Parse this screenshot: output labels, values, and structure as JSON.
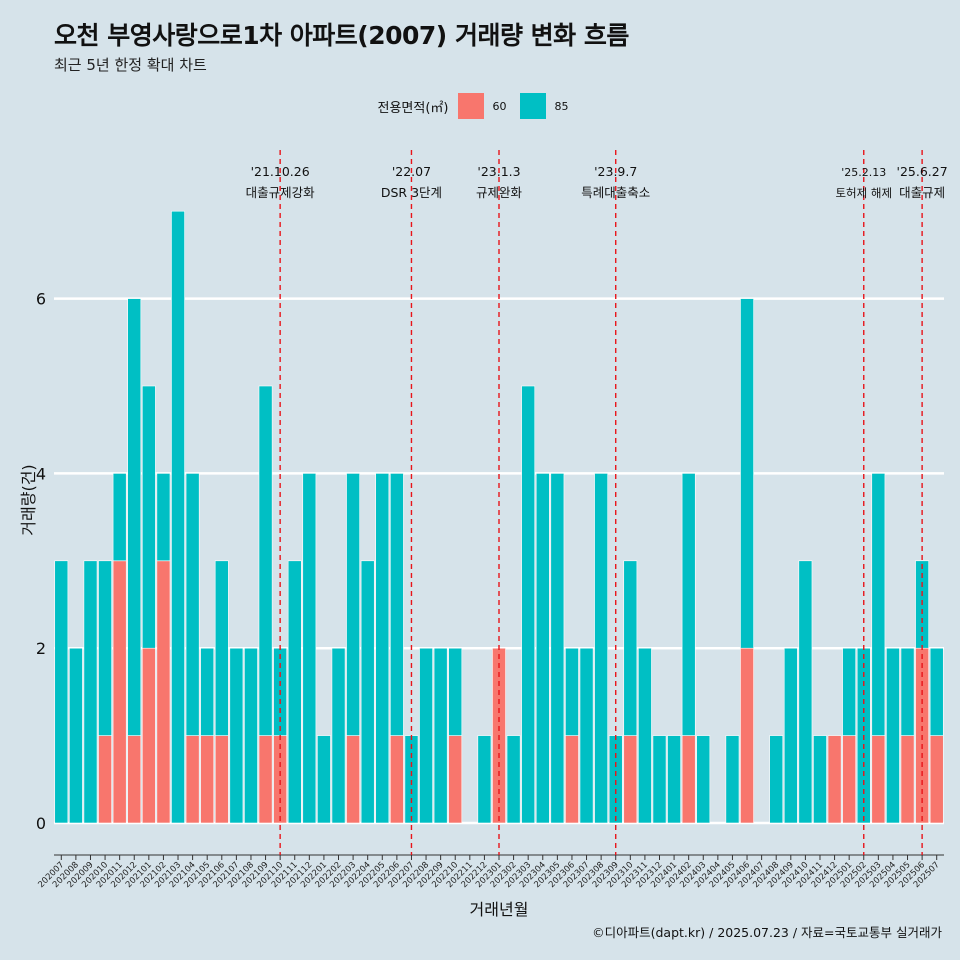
{
  "title": "오천 부영사랑으로1차 아파트(2007) 거래량 변화 흐름",
  "subtitle": "최근 5년 한정 확대 차트",
  "caption": "©디아파트(dapt.kr) / 2025.07.23 / 자료=국토교통부 실거래가",
  "legend": {
    "title": "전용면적(㎡)",
    "items": [
      {
        "label": "60",
        "color": "#f8766d"
      },
      {
        "label": "85",
        "color": "#00bfc4"
      }
    ]
  },
  "chart_data": {
    "type": "bar",
    "xlabel": "거래년월",
    "ylabel": "거래량(건)",
    "ylim": [
      -0.3,
      7.5
    ],
    "yticks": [
      0,
      2,
      4,
      6
    ],
    "grid": true,
    "legend_position": "top",
    "categories": [
      "202007",
      "202008",
      "202009",
      "202010",
      "202011",
      "202012",
      "202101",
      "202102",
      "202103",
      "202104",
      "202105",
      "202106",
      "202107",
      "202108",
      "202109",
      "202110",
      "202111",
      "202112",
      "202201",
      "202202",
      "202203",
      "202204",
      "202205",
      "202206",
      "202207",
      "202208",
      "202209",
      "202210",
      "202211",
      "202212",
      "202301",
      "202302",
      "202303",
      "202304",
      "202305",
      "202306",
      "202307",
      "202308",
      "202309",
      "202310",
      "202311",
      "202312",
      "202401",
      "202402",
      "202403",
      "202404",
      "202405",
      "202406",
      "202407",
      "202408",
      "202409",
      "202410",
      "202411",
      "202412",
      "202501",
      "202502",
      "202503",
      "202504",
      "202505",
      "202506",
      "202507"
    ],
    "series": [
      {
        "name": "60",
        "color": "#f8766d",
        "values": [
          0,
          0,
          0,
          1,
          3,
          1,
          2,
          3,
          0,
          1,
          1,
          1,
          0,
          0,
          1,
          1,
          0,
          0,
          0,
          0,
          1,
          0,
          0,
          1,
          0,
          0,
          0,
          1,
          0,
          0,
          2,
          0,
          0,
          0,
          0,
          1,
          0,
          0,
          0,
          1,
          0,
          0,
          0,
          1,
          0,
          0,
          0,
          2,
          0,
          0,
          0,
          0,
          0,
          1,
          1,
          0,
          1,
          0,
          1,
          2,
          1
        ]
      },
      {
        "name": "85",
        "color": "#00bfc4",
        "values": [
          3,
          2,
          3,
          2,
          1,
          5,
          3,
          1,
          7,
          3,
          1,
          2,
          2,
          2,
          4,
          1,
          3,
          4,
          1,
          2,
          3,
          3,
          4,
          3,
          1,
          2,
          2,
          1,
          0,
          1,
          0,
          1,
          5,
          4,
          4,
          1,
          2,
          4,
          1,
          2,
          2,
          1,
          1,
          3,
          1,
          0,
          1,
          4,
          0,
          1,
          2,
          3,
          1,
          0,
          1,
          2,
          3,
          2,
          1,
          1,
          1
        ]
      }
    ],
    "events": [
      {
        "date": "'21.10.26",
        "label": "대출규제강화",
        "month": "202110"
      },
      {
        "date": "'22.07",
        "label": "DSR 3단계",
        "month": "202207"
      },
      {
        "date": "'23.1.3",
        "label": "규제완화",
        "month": "202301"
      },
      {
        "date": "'23.9.7",
        "label": "특례대출축소",
        "month": "202309"
      },
      {
        "date": "'25.2.13",
        "label": "토허제 해제",
        "month": "202502"
      },
      {
        "date": "'25.6.27",
        "label": "대출규제",
        "month": "202506"
      }
    ]
  }
}
